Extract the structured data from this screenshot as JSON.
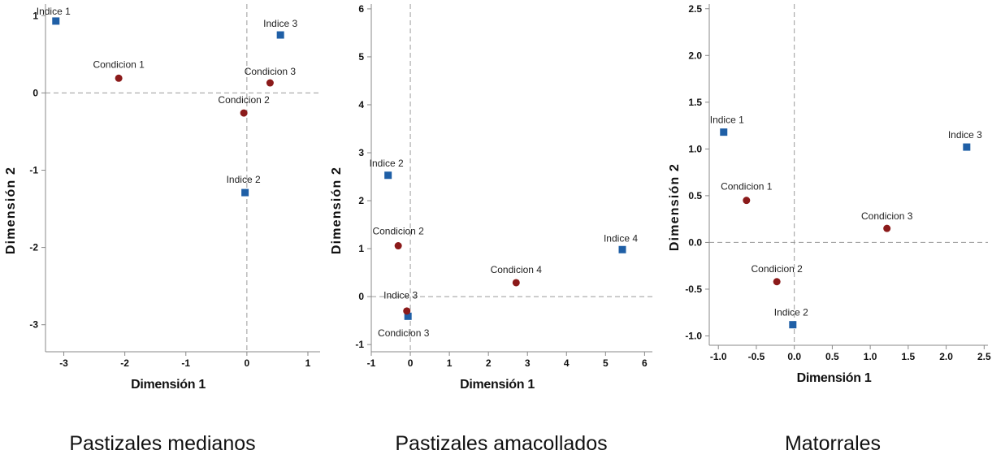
{
  "colors": {
    "indice": "#1f5fa6",
    "condicion": "#8b1a1a",
    "axis": "#888888",
    "zero_line": "#9a9a9a"
  },
  "chart_data": [
    {
      "type": "scatter",
      "caption": "Pastizales medianos",
      "xlabel": "Dimensión 1",
      "ylabel": "Dimensión 2",
      "xlim": [
        -3.3,
        1.2
      ],
      "ylim": [
        -3.35,
        1.15
      ],
      "xticks": [
        -3,
        -2,
        -1,
        0,
        1
      ],
      "xtick_labels": [
        "-3",
        "-2",
        "-1",
        "0",
        "1"
      ],
      "yticks": [
        -3,
        -2,
        -1,
        0,
        1
      ],
      "ytick_labels": [
        "-3",
        "-2",
        "-1",
        "0",
        "1"
      ],
      "series": [
        {
          "name": "Indice",
          "marker": "square",
          "points": [
            {
              "label": "Indice 1",
              "x": -3.13,
              "y": 0.93
            },
            {
              "label": "Indice 2",
              "x": -0.03,
              "y": -1.29
            },
            {
              "label": "Indice 3",
              "x": 0.55,
              "y": 0.75
            }
          ]
        },
        {
          "name": "Condicion",
          "marker": "circle",
          "points": [
            {
              "label": "Condicion 1",
              "x": -2.1,
              "y": 0.19
            },
            {
              "label": "Condicion 2",
              "x": -0.05,
              "y": -0.26
            },
            {
              "label": "Condicion 3",
              "x": 0.38,
              "y": 0.13
            }
          ]
        }
      ]
    },
    {
      "type": "scatter",
      "caption": "Pastizales amacollados",
      "xlabel": "Dimensión 1",
      "ylabel": "Dimensión 2",
      "xlim": [
        -1.0,
        6.2
      ],
      "ylim": [
        -1.15,
        6.1
      ],
      "xticks": [
        -1,
        0,
        1,
        2,
        3,
        4,
        5,
        6
      ],
      "xtick_labels": [
        "-1",
        "0",
        "1",
        "2",
        "3",
        "4",
        "5",
        "6"
      ],
      "yticks": [
        -1,
        0,
        1,
        2,
        3,
        4,
        5,
        6
      ],
      "ytick_labels": [
        "-1",
        "0",
        "1",
        "2",
        "3",
        "4",
        "5",
        "6"
      ],
      "series": [
        {
          "name": "Indice",
          "marker": "square",
          "points": [
            {
              "label": "Indice 2",
              "x": -0.57,
              "y": 2.53
            },
            {
              "label": "Indice 3",
              "x": -0.06,
              "y": -0.41
            },
            {
              "label": "Indice 4",
              "x": 5.43,
              "y": 0.98
            }
          ]
        },
        {
          "name": "Condicion",
          "marker": "circle",
          "points": [
            {
              "label": "Condicion 2",
              "x": -0.31,
              "y": 1.06
            },
            {
              "label": "Condicion 3",
              "x": -0.09,
              "y": -0.3
            },
            {
              "label": "Condicion 4",
              "x": 2.71,
              "y": 0.29
            }
          ]
        }
      ]
    },
    {
      "type": "scatter",
      "caption": "Matorrales",
      "xlabel": "Dimensión 1",
      "ylabel": "Dimensión 2",
      "xlim": [
        -1.12,
        2.55
      ],
      "ylim": [
        -1.1,
        2.55
      ],
      "xticks": [
        -1.0,
        -0.5,
        0.0,
        0.5,
        1.0,
        1.5,
        2.0,
        2.5
      ],
      "xtick_labels": [
        "-1.0",
        "-0.5",
        "0.0",
        "0.5",
        "1.0",
        "1.5",
        "2.0",
        "2.5"
      ],
      "yticks": [
        -1.0,
        -0.5,
        0.0,
        0.5,
        1.0,
        1.5,
        2.0,
        2.5
      ],
      "ytick_labels": [
        "-1.0",
        "-0.5",
        "0.0",
        "0.5",
        "1.0",
        "1.5",
        "2.0",
        "2.5"
      ],
      "series": [
        {
          "name": "Indice",
          "marker": "square",
          "points": [
            {
              "label": "Indice 1",
              "x": -0.93,
              "y": 1.18
            },
            {
              "label": "Indice 2",
              "x": -0.02,
              "y": -0.88
            },
            {
              "label": "Indice 3",
              "x": 2.27,
              "y": 1.02
            }
          ]
        },
        {
          "name": "Condicion",
          "marker": "circle",
          "points": [
            {
              "label": "Condicion 1",
              "x": -0.63,
              "y": 0.45
            },
            {
              "label": "Condicion 2",
              "x": -0.23,
              "y": -0.42
            },
            {
              "label": "Condicion 3",
              "x": 1.22,
              "y": 0.15
            }
          ]
        }
      ]
    }
  ]
}
